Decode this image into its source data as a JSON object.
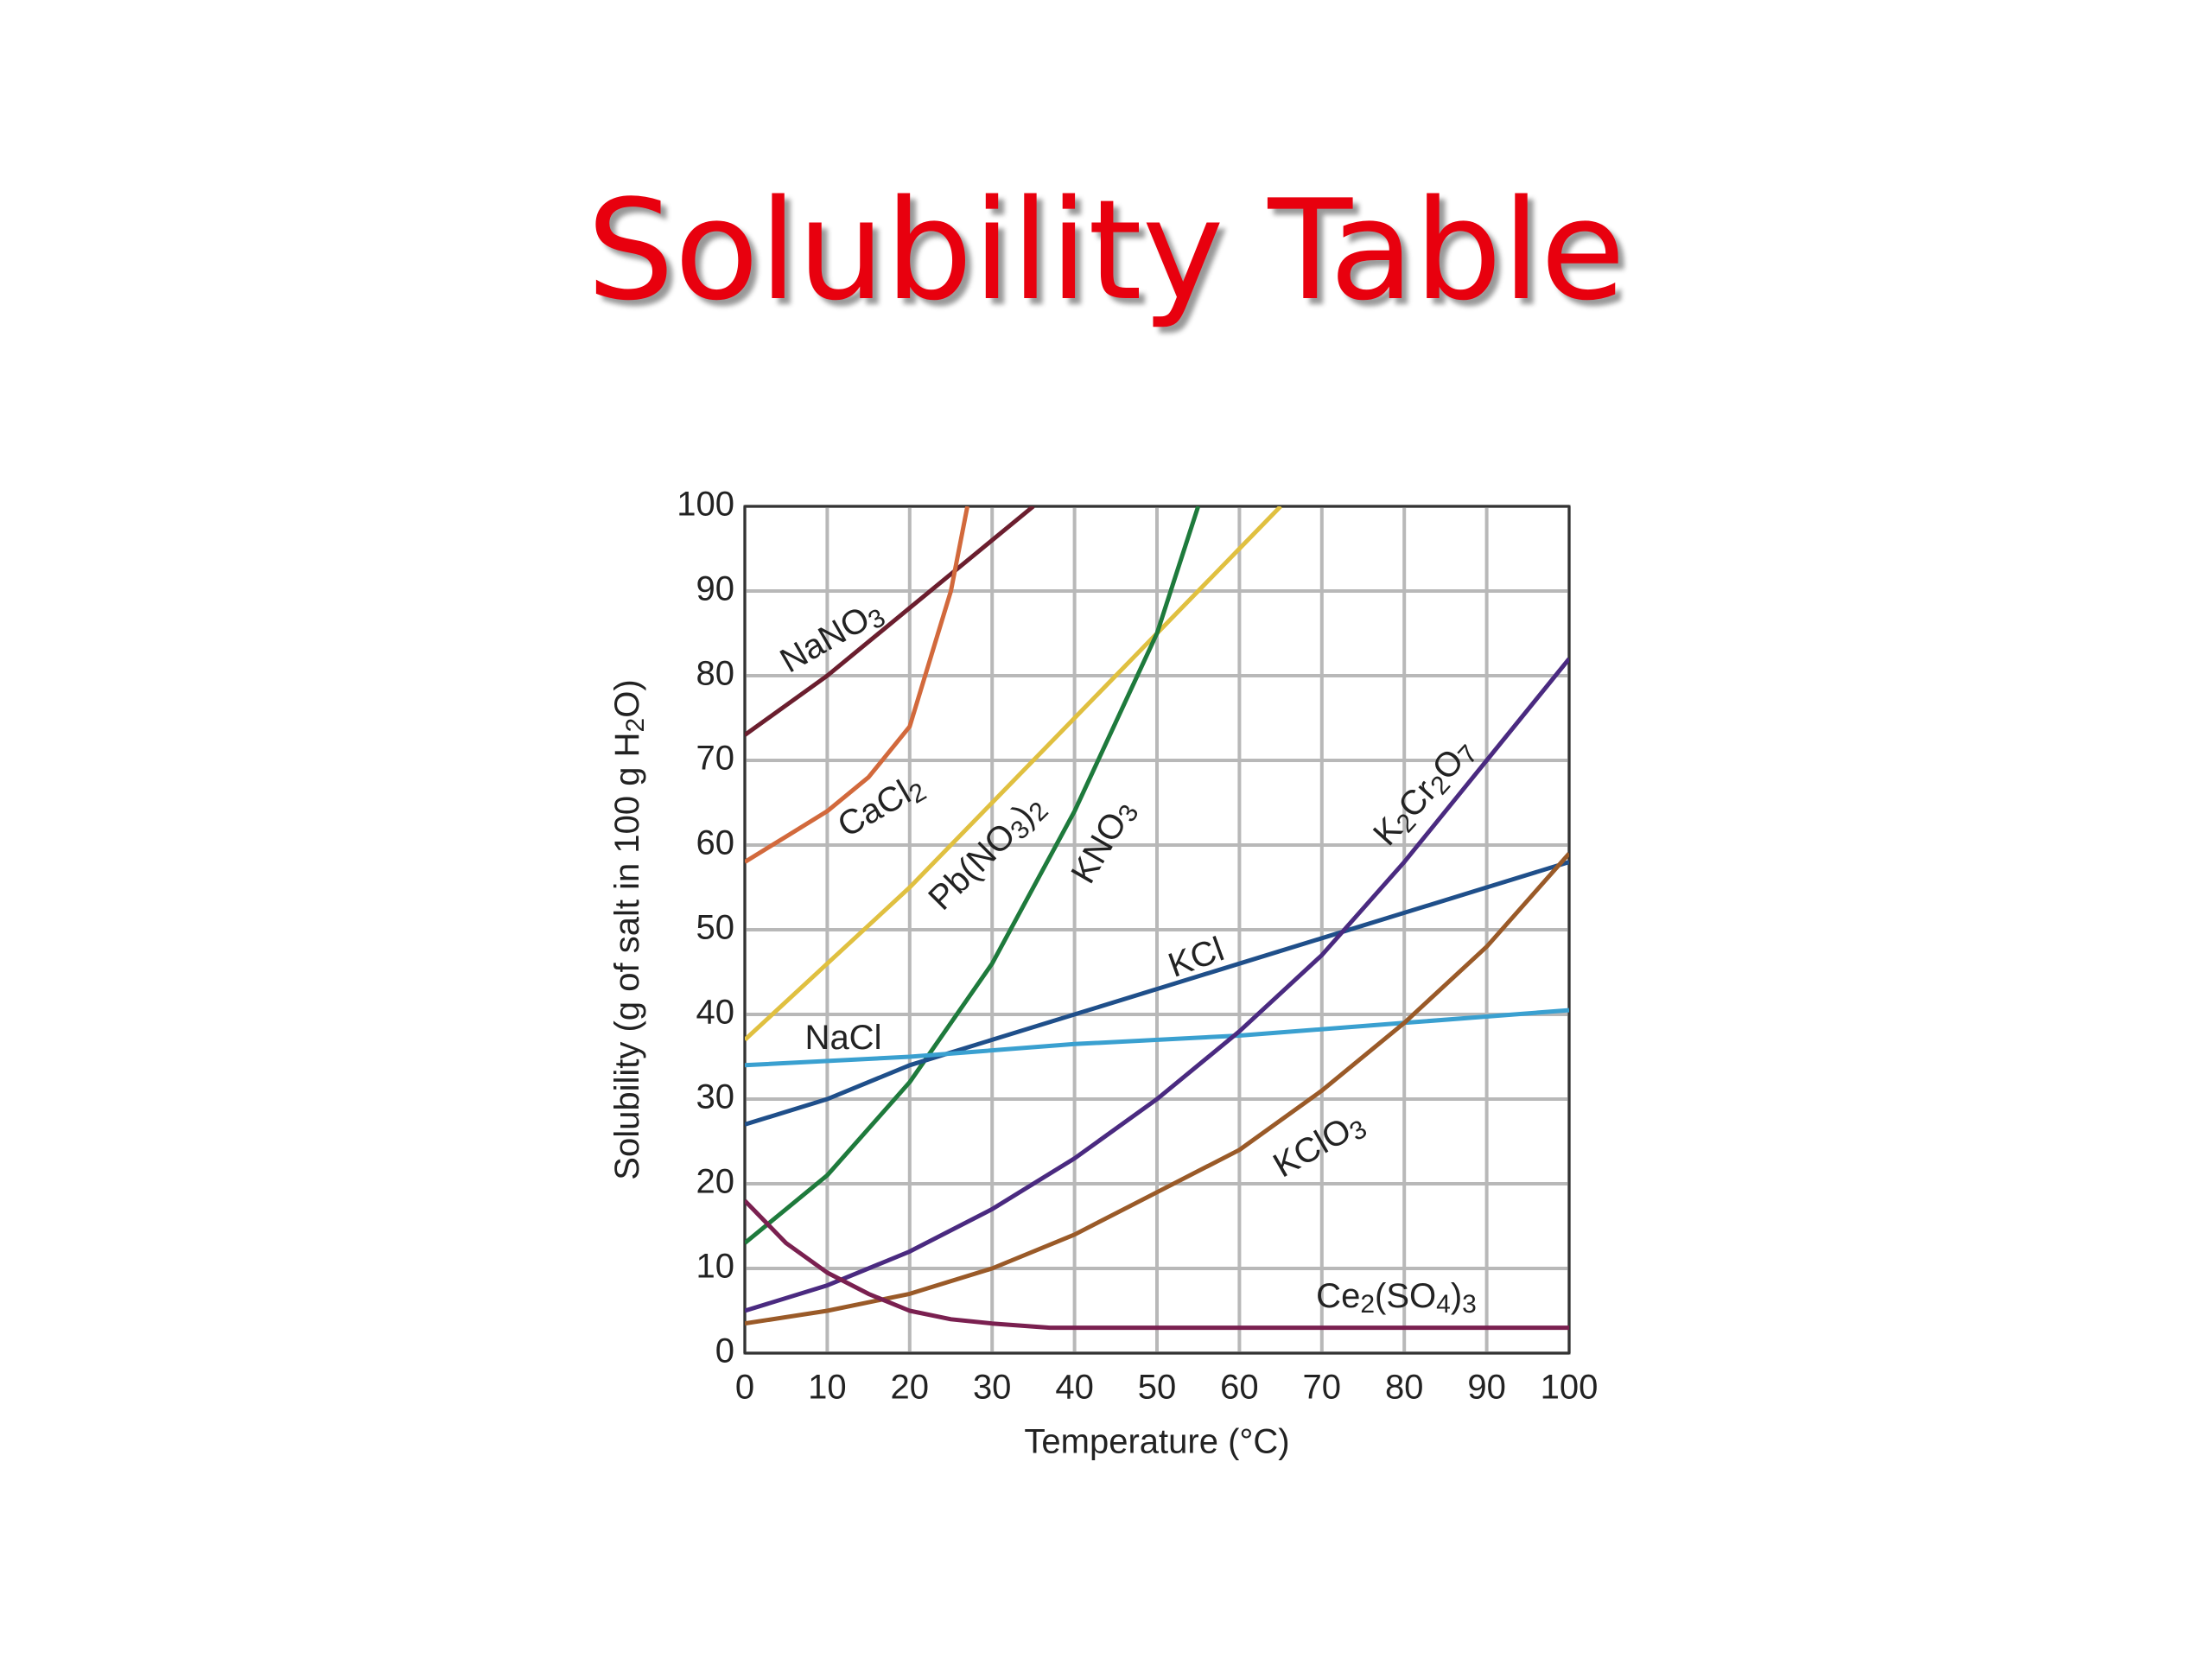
{
  "chart_data": {
    "type": "line",
    "title": "Solubility Table",
    "x_label": "Temperature (°C)",
    "y_label": "Solubility (g of salt in 100 g H2O)",
    "xlim": [
      0,
      100
    ],
    "ylim": [
      0,
      100
    ],
    "xticks": [
      0,
      10,
      20,
      30,
      40,
      50,
      60,
      70,
      80,
      90,
      100
    ],
    "yticks": [
      0,
      10,
      20,
      30,
      40,
      50,
      60,
      70,
      80,
      90,
      100
    ],
    "grid": true,
    "series": [
      {
        "name": "NaNO3",
        "color": "#6b1e2e",
        "x": [
          0,
          10,
          20,
          30,
          35
        ],
        "values": [
          73,
          80,
          88,
          96,
          100
        ]
      },
      {
        "name": "CaCl2",
        "color": "#d2693c",
        "x": [
          0,
          5,
          10,
          15,
          20,
          25,
          27
        ],
        "values": [
          58,
          61,
          64,
          68,
          74,
          90,
          100
        ]
      },
      {
        "name": "Pb(NO3)2",
        "color": "#e0c040",
        "x": [
          0,
          10,
          20,
          30,
          40,
          50,
          60,
          65
        ],
        "values": [
          37,
          46,
          55,
          65,
          75,
          85,
          95,
          100
        ]
      },
      {
        "name": "KNO3",
        "color": "#1e7a3c",
        "x": [
          0,
          10,
          20,
          30,
          40,
          50,
          55
        ],
        "values": [
          13,
          21,
          32,
          46,
          64,
          85,
          100
        ]
      },
      {
        "name": "KCl",
        "color": "#1f4f8a",
        "x": [
          0,
          10,
          20,
          30,
          40,
          50,
          60,
          70,
          80,
          90,
          100
        ],
        "values": [
          27,
          30,
          34,
          37,
          40,
          43,
          46,
          49,
          52,
          55,
          58
        ]
      },
      {
        "name": "NaCl",
        "color": "#3aa0d0",
        "x": [
          0,
          20,
          40,
          60,
          80,
          100
        ],
        "values": [
          34,
          35,
          36.5,
          37.5,
          39,
          40.5
        ]
      },
      {
        "name": "K2Cr2O7",
        "color": "#4a2a80",
        "x": [
          0,
          10,
          20,
          30,
          40,
          50,
          60,
          70,
          80,
          90,
          100
        ],
        "values": [
          5,
          8,
          12,
          17,
          23,
          30,
          38,
          47,
          58,
          70,
          82
        ]
      },
      {
        "name": "KClO3",
        "color": "#9a5a28",
        "x": [
          0,
          10,
          20,
          30,
          40,
          50,
          60,
          70,
          80,
          90,
          100
        ],
        "values": [
          3.5,
          5,
          7,
          10,
          14,
          19,
          24,
          31,
          39,
          48,
          59
        ]
      },
      {
        "name": "Ce2(SO4)3",
        "color": "#7a2050",
        "x": [
          0,
          5,
          10,
          15,
          20,
          25,
          30,
          37,
          100
        ],
        "values": [
          18,
          13,
          9.5,
          7,
          5,
          4,
          3.5,
          3,
          3
        ]
      }
    ]
  }
}
